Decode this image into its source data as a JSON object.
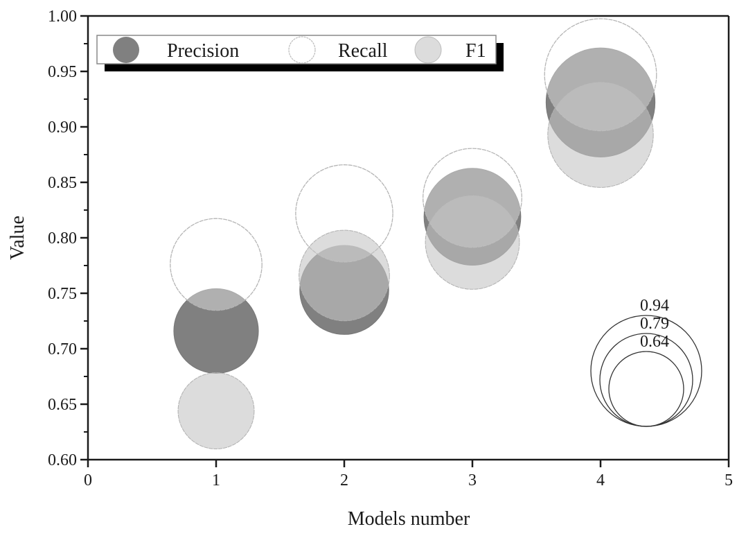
{
  "chart_data": {
    "type": "scatter",
    "subtype": "bubble",
    "title": "",
    "xlabel": "Models number",
    "ylabel": "Value",
    "xlim": [
      0,
      5
    ],
    "ylim": [
      0.6,
      1.0
    ],
    "x_ticks": [
      "0",
      "1",
      "2",
      "3",
      "4",
      "5"
    ],
    "y_ticks": [
      "0.60",
      "0.65",
      "0.70",
      "0.75",
      "0.80",
      "0.85",
      "0.90",
      "0.95",
      "1.00"
    ],
    "grid": false,
    "legend_position": "top-left",
    "categories": [
      1,
      2,
      3,
      4
    ],
    "series": [
      {
        "name": "Precision",
        "color": "#808080",
        "values": [
          0.716,
          0.753,
          0.819,
          0.922
        ]
      },
      {
        "name": "Recall",
        "color": "#ffffff",
        "values": [
          0.776,
          0.822,
          0.836,
          0.947
        ]
      },
      {
        "name": "F1",
        "color": "#dcdcdc",
        "values": [
          0.644,
          0.766,
          0.796,
          0.893
        ]
      }
    ],
    "bubble_size_encodes": "value",
    "size_legend": [
      "0.94",
      "0.79",
      "0.64"
    ]
  },
  "legend": {
    "items": [
      {
        "label": "Precision",
        "marker": "filled-dark-circle"
      },
      {
        "label": "Recall",
        "marker": "hollow-circle"
      },
      {
        "label": "F1",
        "marker": "filled-light-circle"
      }
    ]
  },
  "size_legend": {
    "labels": [
      "0.94",
      "0.79",
      "0.64"
    ]
  },
  "axes": {
    "x_title": "Models number",
    "y_title": "Value"
  }
}
